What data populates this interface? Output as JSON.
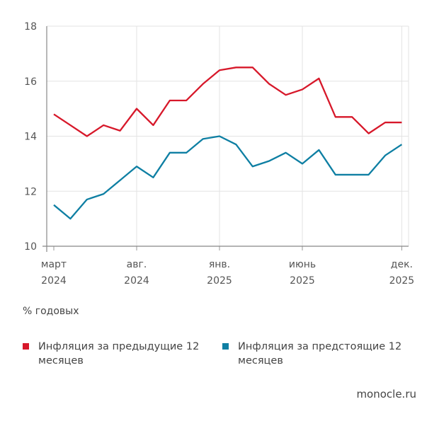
{
  "chart_data": {
    "type": "line",
    "title": "",
    "unit_label": "% годовых",
    "x": [
      "март 2024",
      "апр. 2024",
      "май 2024",
      "июнь 2024",
      "июль 2024",
      "авг. 2024",
      "сент. 2024",
      "окт. 2024",
      "нояб. 2024",
      "дек. 2024",
      "янв. 2025",
      "февр. 2025",
      "март 2025",
      "апр. 2025",
      "май 2025",
      "июнь 2025",
      "июль 2025",
      "авг. 2025",
      "сент. 2025",
      "окт. 2025",
      "нояб. 2025",
      "дек. 2025"
    ],
    "x_ticks": [
      {
        "index": 0,
        "line1": "март",
        "line2": "2024"
      },
      {
        "index": 5,
        "line1": "авг.",
        "line2": "2024"
      },
      {
        "index": 10,
        "line1": "янв.",
        "line2": "2025"
      },
      {
        "index": 15,
        "line1": "июнь",
        "line2": "2025"
      },
      {
        "index": 21,
        "line1": "дек.",
        "line2": "2025"
      }
    ],
    "ylim": [
      10,
      18
    ],
    "y_ticks": [
      10,
      12,
      14,
      16,
      18
    ],
    "grid": true,
    "legend_placement": "bottom",
    "series": [
      {
        "name": "Инфляция за предыдущие 12 месяцев",
        "color": "#d7182a",
        "values": [
          14.8,
          14.4,
          14.0,
          14.4,
          14.2,
          15.0,
          14.4,
          15.3,
          15.3,
          15.9,
          16.4,
          16.5,
          16.5,
          15.9,
          15.5,
          15.7,
          16.1,
          14.7,
          14.7,
          14.1,
          14.5,
          14.5
        ]
      },
      {
        "name": "Инфляция за предстоящие 12 месяцев",
        "color": "#0e7fa3",
        "values": [
          11.5,
          11.0,
          11.7,
          11.9,
          12.4,
          12.9,
          12.5,
          13.4,
          13.4,
          13.9,
          14.0,
          13.7,
          12.9,
          13.1,
          13.4,
          13.0,
          13.5,
          12.6,
          12.6,
          12.6,
          13.3,
          13.7
        ]
      }
    ]
  },
  "source": "monocle.ru"
}
